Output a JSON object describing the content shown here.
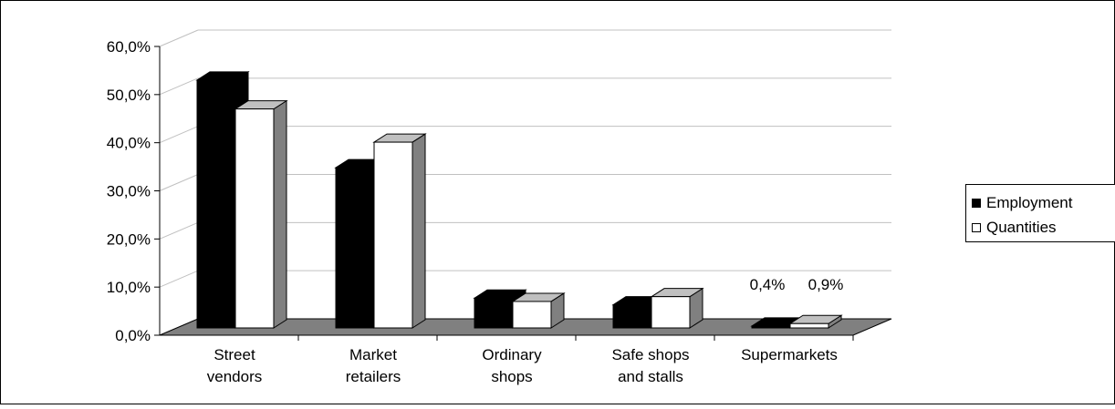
{
  "chart_data": {
    "type": "bar",
    "categories": [
      [
        "Street",
        "vendors"
      ],
      [
        "Market",
        "retailers"
      ],
      [
        "Ordinary",
        "shops"
      ],
      [
        "Safe shops",
        "and stalls"
      ],
      [
        "Supermarkets"
      ]
    ],
    "series": [
      {
        "name": "Employment",
        "color": "#000000",
        "values": [
          51.5,
          33.3,
          6.2,
          4.8,
          0.4
        ]
      },
      {
        "name": "Quantities",
        "color": "#ffffff",
        "values": [
          45.5,
          38.6,
          5.5,
          6.5,
          0.9
        ]
      }
    ],
    "yticks": [
      "0,0%",
      "10,0%",
      "20,0%",
      "30,0%",
      "40,0%",
      "50,0%",
      "60,0%"
    ],
    "ylim": [
      0,
      60
    ],
    "data_labels": [
      {
        "category_index": 4,
        "series_index": 0,
        "text": "0,4%"
      },
      {
        "category_index": 4,
        "series_index": 1,
        "text": "0,9%"
      }
    ],
    "grid": true,
    "legend_position": "right",
    "floor_color": "#808080"
  }
}
